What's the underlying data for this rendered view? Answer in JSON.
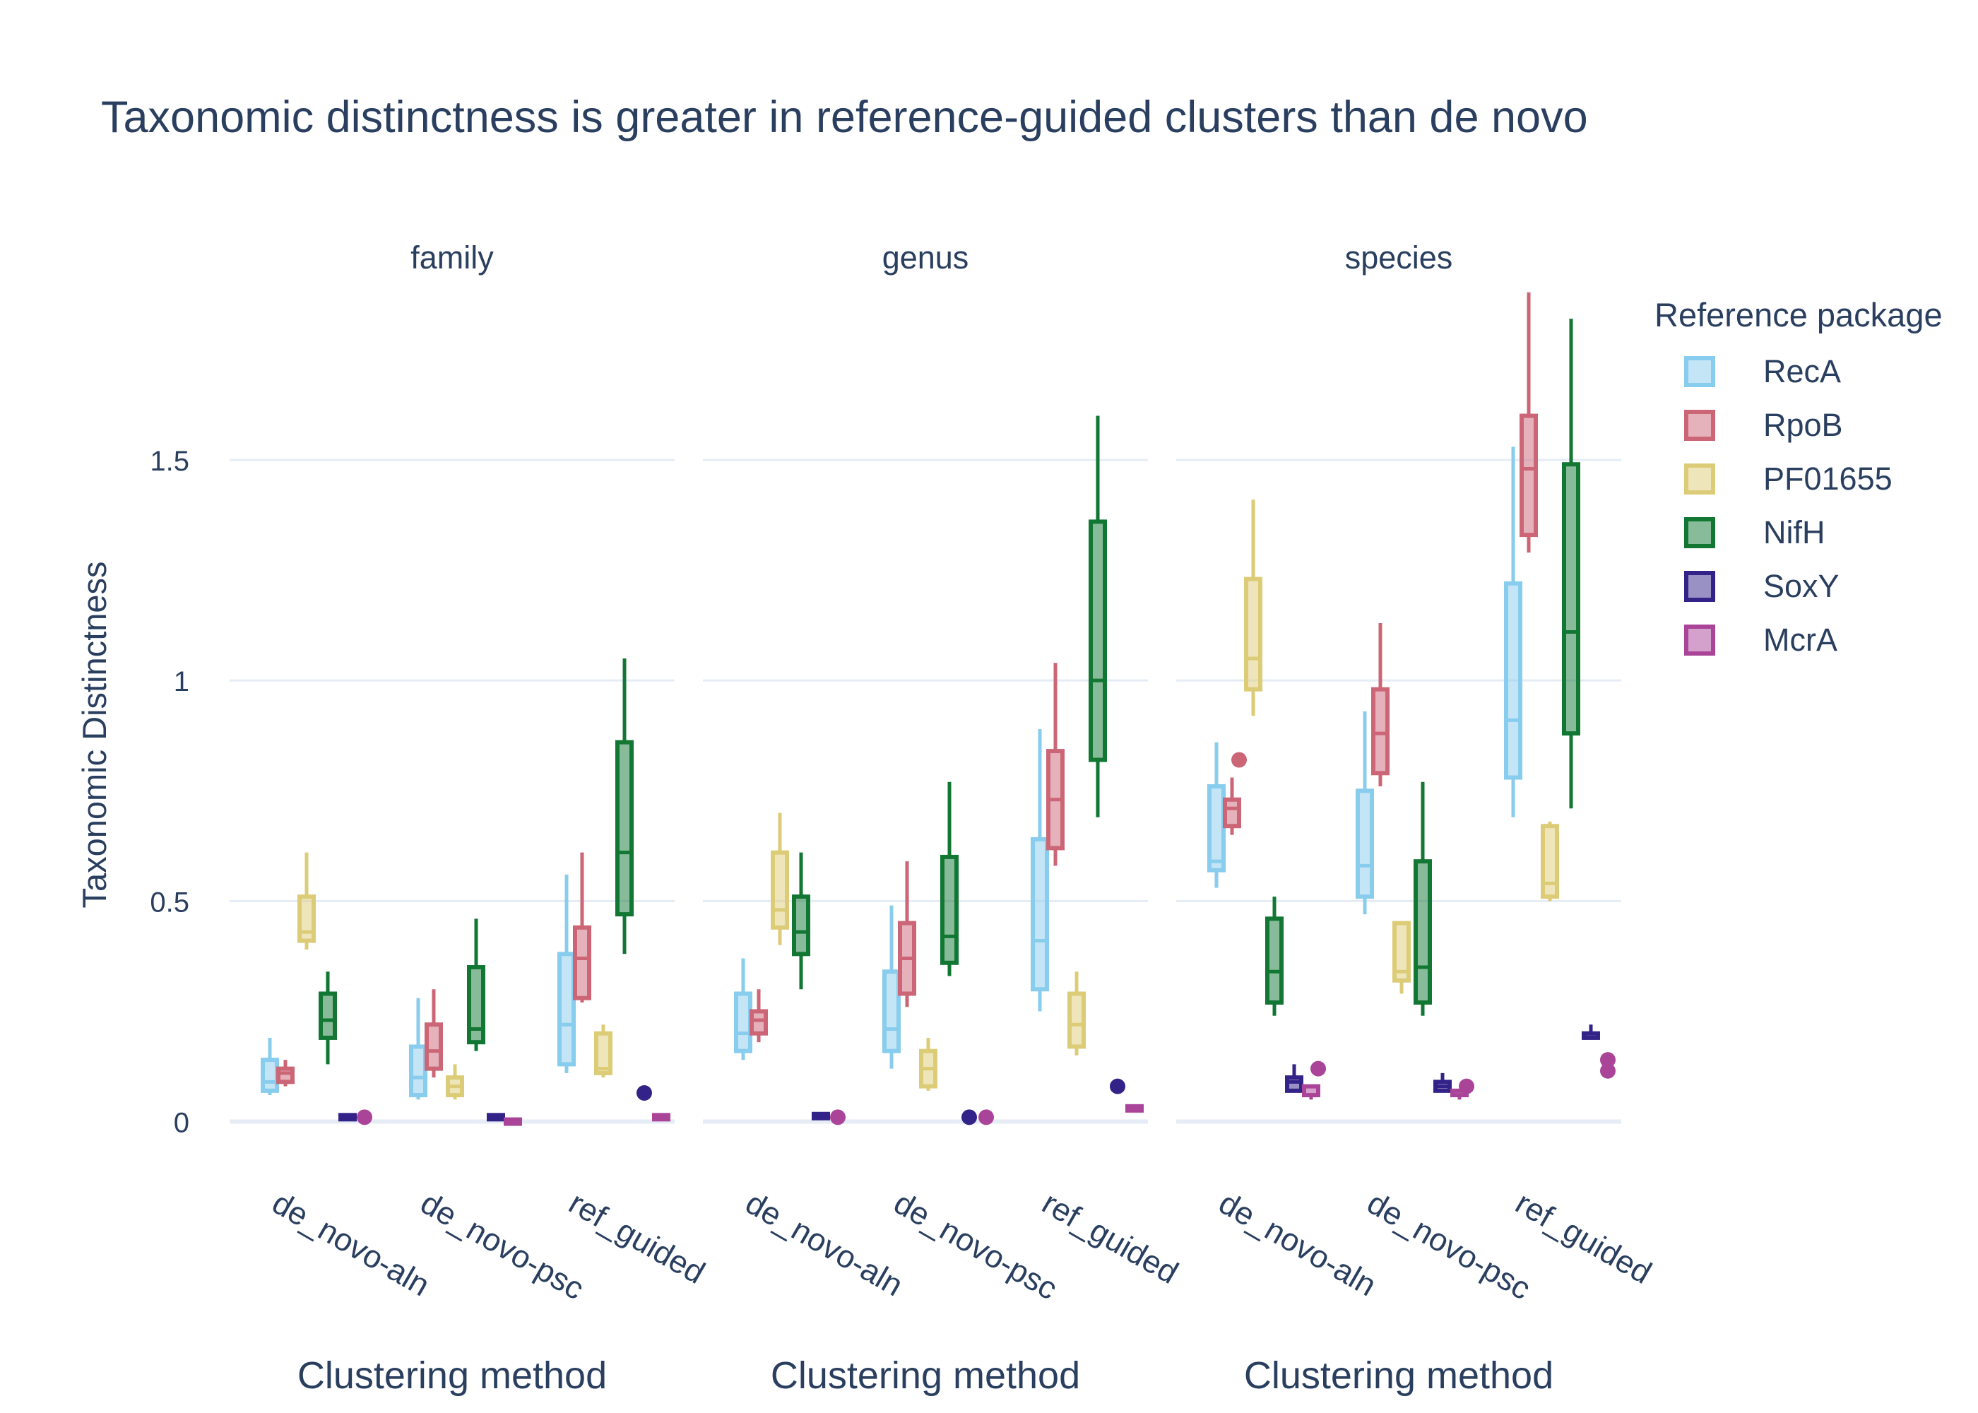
{
  "title": "Taxonomic distinctness is greater in reference-guided clusters than de novo",
  "legend": {
    "title": "Reference package",
    "items": [
      {
        "name": "RecA",
        "color": "#88CCEE"
      },
      {
        "name": "RpoB",
        "color": "#CC6677"
      },
      {
        "name": "PF01655",
        "color": "#DDCC77"
      },
      {
        "name": "NifH",
        "color": "#117733"
      },
      {
        "name": "SoxY",
        "color": "#332288"
      },
      {
        "name": "McrA",
        "color": "#AA4499"
      }
    ]
  },
  "chart_data": {
    "type": "box",
    "ylabel": "Taxonomic Distinctness",
    "xlabel": "Clustering method",
    "ylim": [
      -0.1,
      1.95
    ],
    "yticks": [
      0,
      0.5,
      1,
      1.5
    ],
    "ytick_labels": [
      "0",
      "0.5",
      "1",
      "1.5"
    ],
    "grid": true,
    "legend_position": "right",
    "categories": [
      "de_novo-aln",
      "de_novo-psc",
      "ref_guided"
    ],
    "series": [
      "RecA",
      "RpoB",
      "PF01655",
      "NifH",
      "SoxY",
      "McrA"
    ],
    "facets": [
      {
        "name": "family",
        "groups": [
          {
            "category": "de_novo-aln",
            "boxes": [
              {
                "series": "RecA",
                "min": 0.06,
                "q1": 0.07,
                "median": 0.09,
                "q3": 0.14,
                "max": 0.19
              },
              {
                "series": "RpoB",
                "min": 0.08,
                "q1": 0.09,
                "median": 0.11,
                "q3": 0.12,
                "max": 0.14
              },
              {
                "series": "PF01655",
                "min": 0.39,
                "q1": 0.41,
                "median": 0.43,
                "q3": 0.51,
                "max": 0.61
              },
              {
                "series": "NifH",
                "min": 0.13,
                "q1": 0.19,
                "median": 0.23,
                "q3": 0.29,
                "max": 0.34
              },
              {
                "series": "SoxY",
                "min": 0.01,
                "q1": 0.01,
                "median": 0.01,
                "q3": 0.01,
                "max": 0.01
              },
              {
                "series": "McrA",
                "outliers": [
                  0.01
                ]
              }
            ]
          },
          {
            "category": "de_novo-psc",
            "boxes": [
              {
                "series": "RecA",
                "min": 0.05,
                "q1": 0.06,
                "median": 0.1,
                "q3": 0.17,
                "max": 0.28
              },
              {
                "series": "RpoB",
                "min": 0.1,
                "q1": 0.12,
                "median": 0.16,
                "q3": 0.22,
                "max": 0.3
              },
              {
                "series": "PF01655",
                "min": 0.05,
                "q1": 0.06,
                "median": 0.08,
                "q3": 0.1,
                "max": 0.13
              },
              {
                "series": "NifH",
                "min": 0.16,
                "q1": 0.18,
                "median": 0.21,
                "q3": 0.35,
                "max": 0.46
              },
              {
                "series": "SoxY",
                "min": 0.01,
                "q1": 0.01,
                "median": 0.01,
                "q3": 0.01,
                "max": 0.01
              },
              {
                "series": "McrA",
                "min": 0.0,
                "q1": 0.0,
                "median": 0.0,
                "q3": 0.0,
                "max": 0.0
              }
            ]
          },
          {
            "category": "ref_guided",
            "boxes": [
              {
                "series": "RecA",
                "min": 0.11,
                "q1": 0.13,
                "median": 0.22,
                "q3": 0.38,
                "max": 0.56
              },
              {
                "series": "RpoB",
                "min": 0.27,
                "q1": 0.28,
                "median": 0.37,
                "q3": 0.44,
                "max": 0.61
              },
              {
                "series": "PF01655",
                "min": 0.1,
                "q1": 0.11,
                "median": 0.12,
                "q3": 0.2,
                "max": 0.22
              },
              {
                "series": "NifH",
                "min": 0.38,
                "q1": 0.47,
                "median": 0.61,
                "q3": 0.86,
                "max": 1.05
              },
              {
                "series": "SoxY",
                "outliers": [
                  0.065
                ]
              },
              {
                "series": "McrA",
                "min": 0.01,
                "q1": 0.01,
                "median": 0.01,
                "q3": 0.01,
                "max": 0.01
              }
            ]
          }
        ]
      },
      {
        "name": "genus",
        "groups": [
          {
            "category": "de_novo-aln",
            "boxes": [
              {
                "series": "RecA",
                "min": 0.14,
                "q1": 0.16,
                "median": 0.2,
                "q3": 0.29,
                "max": 0.37
              },
              {
                "series": "RpoB",
                "min": 0.18,
                "q1": 0.2,
                "median": 0.23,
                "q3": 0.25,
                "max": 0.3
              },
              {
                "series": "PF01655",
                "min": 0.4,
                "q1": 0.44,
                "median": 0.48,
                "q3": 0.61,
                "max": 0.7
              },
              {
                "series": "NifH",
                "min": 0.3,
                "q1": 0.38,
                "median": 0.43,
                "q3": 0.51,
                "max": 0.61
              },
              {
                "series": "SoxY",
                "min": 0.01,
                "q1": 0.01,
                "median": 0.015,
                "q3": 0.015,
                "max": 0.015
              },
              {
                "series": "McrA",
                "outliers": [
                  0.01
                ]
              }
            ]
          },
          {
            "category": "de_novo-psc",
            "boxes": [
              {
                "series": "RecA",
                "min": 0.12,
                "q1": 0.16,
                "median": 0.21,
                "q3": 0.34,
                "max": 0.49
              },
              {
                "series": "RpoB",
                "min": 0.26,
                "q1": 0.29,
                "median": 0.37,
                "q3": 0.45,
                "max": 0.59
              },
              {
                "series": "PF01655",
                "min": 0.07,
                "q1": 0.08,
                "median": 0.12,
                "q3": 0.16,
                "max": 0.19
              },
              {
                "series": "NifH",
                "min": 0.33,
                "q1": 0.36,
                "median": 0.42,
                "q3": 0.6,
                "max": 0.77
              },
              {
                "series": "SoxY",
                "outliers": [
                  0.01
                ]
              },
              {
                "series": "McrA",
                "outliers": [
                  0.01
                ]
              }
            ]
          },
          {
            "category": "ref_guided",
            "boxes": [
              {
                "series": "RecA",
                "min": 0.25,
                "q1": 0.3,
                "median": 0.41,
                "q3": 0.64,
                "max": 0.89
              },
              {
                "series": "RpoB",
                "min": 0.58,
                "q1": 0.62,
                "median": 0.73,
                "q3": 0.84,
                "max": 1.04
              },
              {
                "series": "PF01655",
                "min": 0.15,
                "q1": 0.17,
                "median": 0.22,
                "q3": 0.29,
                "max": 0.34
              },
              {
                "series": "NifH",
                "min": 0.69,
                "q1": 0.82,
                "median": 1.0,
                "q3": 1.36,
                "max": 1.6
              },
              {
                "series": "SoxY",
                "outliers": [
                  0.08
                ]
              },
              {
                "series": "McrA",
                "min": 0.03,
                "q1": 0.03,
                "median": 0.03,
                "q3": 0.03,
                "max": 0.03
              }
            ]
          }
        ]
      },
      {
        "name": "species",
        "groups": [
          {
            "category": "de_novo-aln",
            "boxes": [
              {
                "series": "RecA",
                "min": 0.53,
                "q1": 0.57,
                "median": 0.59,
                "q3": 0.76,
                "max": 0.86
              },
              {
                "series": "RpoB",
                "min": 0.65,
                "q1": 0.67,
                "median": 0.71,
                "q3": 0.73,
                "max": 0.78,
                "outliers": [
                  0.82
                ]
              },
              {
                "series": "PF01655",
                "min": 0.92,
                "q1": 0.98,
                "median": 1.05,
                "q3": 1.23,
                "max": 1.41
              },
              {
                "series": "NifH",
                "min": 0.24,
                "q1": 0.27,
                "median": 0.34,
                "q3": 0.46,
                "max": 0.51
              },
              {
                "series": "SoxY",
                "min": 0.07,
                "q1": 0.07,
                "median": 0.09,
                "q3": 0.1,
                "max": 0.13
              },
              {
                "series": "McrA",
                "min": 0.05,
                "q1": 0.06,
                "median": 0.06,
                "q3": 0.08,
                "max": 0.08,
                "outliers": [
                  0.12
                ]
              }
            ]
          },
          {
            "category": "de_novo-psc",
            "boxes": [
              {
                "series": "RecA",
                "min": 0.47,
                "q1": 0.51,
                "median": 0.58,
                "q3": 0.75,
                "max": 0.93
              },
              {
                "series": "RpoB",
                "min": 0.76,
                "q1": 0.79,
                "median": 0.88,
                "q3": 0.98,
                "max": 1.13
              },
              {
                "series": "PF01655",
                "min": 0.29,
                "q1": 0.32,
                "median": 0.34,
                "q3": 0.45,
                "max": 0.45
              },
              {
                "series": "NifH",
                "min": 0.24,
                "q1": 0.27,
                "median": 0.35,
                "q3": 0.59,
                "max": 0.77
              },
              {
                "series": "SoxY",
                "min": 0.07,
                "q1": 0.07,
                "median": 0.08,
                "q3": 0.09,
                "max": 0.11
              },
              {
                "series": "McrA",
                "min": 0.05,
                "q1": 0.06,
                "median": 0.06,
                "q3": 0.07,
                "max": 0.07,
                "outliers": [
                  0.08
                ]
              }
            ]
          },
          {
            "category": "ref_guided",
            "boxes": [
              {
                "series": "RecA",
                "min": 0.69,
                "q1": 0.78,
                "median": 0.91,
                "q3": 1.22,
                "max": 1.53
              },
              {
                "series": "RpoB",
                "min": 1.29,
                "q1": 1.33,
                "median": 1.48,
                "q3": 1.6,
                "max": 1.88
              },
              {
                "series": "PF01655",
                "min": 0.5,
                "q1": 0.51,
                "median": 0.54,
                "q3": 0.67,
                "max": 0.68
              },
              {
                "series": "NifH",
                "min": 0.71,
                "q1": 0.88,
                "median": 1.11,
                "q3": 1.49,
                "max": 1.82
              },
              {
                "series": "SoxY",
                "min": 0.19,
                "q1": 0.19,
                "median": 0.2,
                "q3": 0.2,
                "max": 0.22
              },
              {
                "series": "McrA",
                "outliers": [
                  0.14,
                  0.115
                ]
              }
            ]
          }
        ]
      }
    ]
  }
}
